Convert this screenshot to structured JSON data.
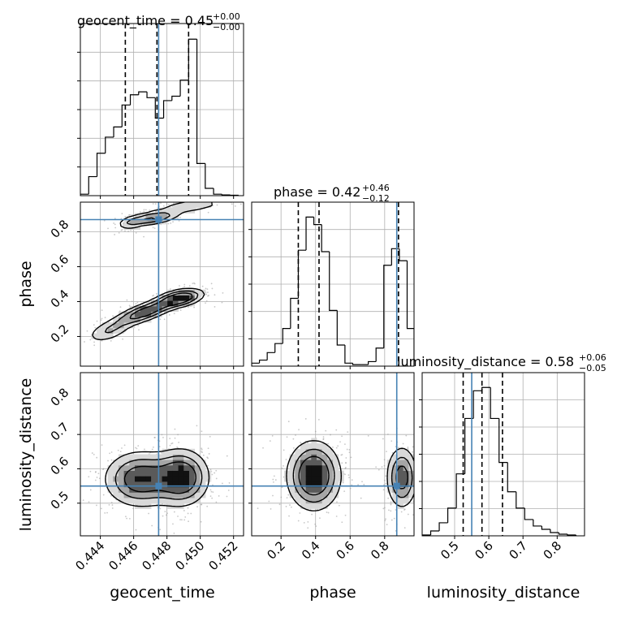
{
  "chart_data": {
    "type": "corner",
    "parameters": [
      "geocent_time",
      "phase",
      "luminosity_distance"
    ],
    "truths": {
      "geocent_time": 0.4475,
      "phase": 0.87,
      "luminosity_distance": 0.55
    },
    "truth_color": "#4682b4",
    "grid": true,
    "titles": [
      {
        "param": "geocent_time",
        "text": "geocent_time = 0.45",
        "upper": "+0.00",
        "lower": "−0.00"
      },
      {
        "param": "phase",
        "text": "phase = 0.42",
        "upper": "+0.46",
        "lower": "−0.12"
      },
      {
        "param": "luminosity_distance",
        "text": "luminosity_distance = 0.58",
        "upper": "+0.06",
        "lower": "−0.05"
      }
    ],
    "axes": {
      "geocent_time": {
        "range": [
          0.4428,
          0.4526
        ],
        "ticks": [
          0.444,
          0.446,
          0.448,
          0.45,
          0.452
        ],
        "tick_labels": [
          "0.444",
          "0.446",
          "0.448",
          "0.450",
          "0.452"
        ],
        "label": "geocent_time"
      },
      "phase": {
        "range": [
          0.03,
          0.97
        ],
        "ticks": [
          0.2,
          0.4,
          0.6,
          0.8
        ],
        "tick_labels": [
          "0.2",
          "0.4",
          "0.6",
          "0.8"
        ],
        "label": "phase"
      },
      "luminosity_distance": {
        "range": [
          0.405,
          0.88
        ],
        "ticks": [
          0.5,
          0.6,
          0.7,
          0.8
        ],
        "tick_labels": [
          "0.5",
          "0.6",
          "0.7",
          "0.8"
        ],
        "label": "luminosity_distance"
      }
    },
    "histograms": [
      {
        "param": "geocent_time",
        "bin_edges": [
          0.4428,
          0.4433,
          0.4438,
          0.4443,
          0.4448,
          0.4453,
          0.4458,
          0.4463,
          0.4468,
          0.4473,
          0.4478,
          0.4483,
          0.4488,
          0.4493,
          0.4498,
          0.4503,
          0.4508,
          0.4513,
          0.4518,
          0.4523
        ],
        "counts": [
          1,
          13,
          29,
          40,
          47,
          62,
          69,
          71,
          67,
          53,
          65,
          68,
          79,
          107,
          22,
          5,
          1,
          0.5,
          0.3
        ],
        "quantiles": [
          0.4455,
          0.4474,
          0.4493
        ]
      },
      {
        "param": "phase",
        "bin_edges": [
          0.03,
          0.075,
          0.12,
          0.165,
          0.21,
          0.255,
          0.3,
          0.345,
          0.39,
          0.435,
          0.48,
          0.525,
          0.57,
          0.615,
          0.66,
          0.705,
          0.75,
          0.795,
          0.84,
          0.885,
          0.93,
          0.97
        ],
        "counts": [
          2,
          4,
          9,
          15,
          25,
          45,
          77,
          99,
          94,
          76,
          37,
          14,
          2,
          1,
          1,
          3,
          12,
          67,
          78,
          70,
          25
        ],
        "quantiles": [
          0.3,
          0.42,
          0.88
        ]
      },
      {
        "param": "luminosity_distance",
        "bin_edges": [
          0.405,
          0.43,
          0.455,
          0.48,
          0.505,
          0.53,
          0.555,
          0.58,
          0.605,
          0.63,
          0.655,
          0.68,
          0.705,
          0.73,
          0.755,
          0.78,
          0.805,
          0.83,
          0.855
        ],
        "counts": [
          0.5,
          3,
          8,
          17,
          38,
          72,
          89,
          91,
          72,
          45,
          27,
          17,
          10,
          6,
          4,
          2,
          1,
          0.5
        ],
        "quantiles": [
          0.525,
          0.58,
          0.64
        ]
      }
    ],
    "joint_densities": [
      {
        "x": "geocent_time",
        "y": "phase",
        "modes": [
          {
            "x": 0.4467,
            "y": 0.34,
            "sx": 0.0011,
            "sy": 0.045,
            "rho": 0.75,
            "w": 1.0
          },
          {
            "x": 0.4488,
            "y": 0.42,
            "sx": 0.0008,
            "sy": 0.03,
            "rho": 0.4,
            "w": 1.1
          },
          {
            "x": 0.4445,
            "y": 0.23,
            "sx": 0.0008,
            "sy": 0.04,
            "rho": 0.5,
            "w": 0.45
          },
          {
            "x": 0.4472,
            "y": 0.88,
            "sx": 0.0009,
            "sy": 0.025,
            "rho": 0.5,
            "w": 0.8
          },
          {
            "x": 0.4458,
            "y": 0.85,
            "sx": 0.0005,
            "sy": 0.025,
            "rho": 0.3,
            "w": 0.35
          },
          {
            "x": 0.4495,
            "y": 0.95,
            "sx": 0.0012,
            "sy": 0.025,
            "rho": 0.4,
            "w": 0.4
          }
        ]
      },
      {
        "x": "geocent_time",
        "y": "luminosity_distance",
        "modes": [
          {
            "x": 0.4464,
            "y": 0.57,
            "sx": 0.0012,
            "sy": 0.045,
            "rho": 0.0,
            "w": 1.0
          },
          {
            "x": 0.4489,
            "y": 0.575,
            "sx": 0.0009,
            "sy": 0.045,
            "rho": 0.0,
            "w": 1.1
          }
        ]
      },
      {
        "x": "phase",
        "y": "luminosity_distance",
        "modes": [
          {
            "x": 0.39,
            "y": 0.58,
            "sx": 0.085,
            "sy": 0.055,
            "rho": 0.0,
            "w": 1.0
          },
          {
            "x": 0.9,
            "y": 0.575,
            "sx": 0.05,
            "sy": 0.05,
            "rho": 0.0,
            "w": 0.75
          }
        ]
      }
    ]
  }
}
